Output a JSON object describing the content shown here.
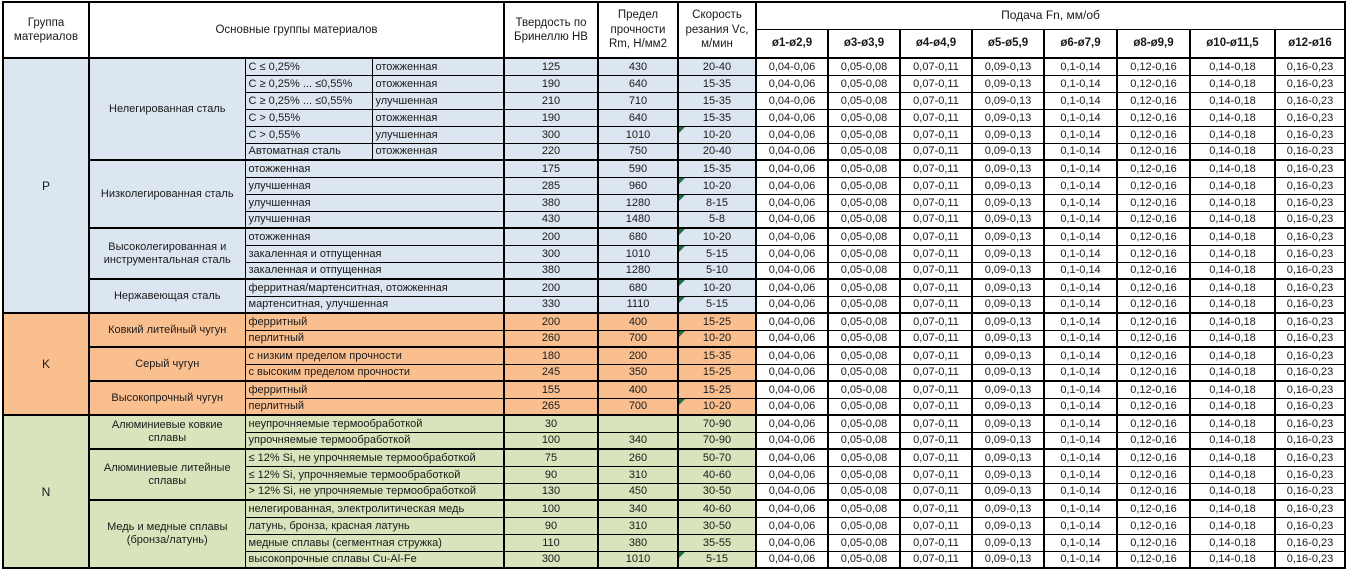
{
  "header": {
    "col_group": "Группа материалов",
    "col_main_groups": "Основные группы материалов",
    "col_hardness": "Твердость по Бринеллю HB",
    "col_strength": "Предел прочности Rm, Н/мм2",
    "col_speed": "Скорость резания Vc, м/мин",
    "feed_title": "Подача Fn, мм/об",
    "feed_cols": [
      "ø1-ø2,9",
      "ø3-ø3,9",
      "ø4-ø4,9",
      "ø5-ø5,9",
      "ø6-ø7,9",
      "ø8-ø9,9",
      "ø10-ø11,5",
      "ø12-ø16"
    ]
  },
  "feed_values": [
    "0,04-0,06",
    "0,05-0,08",
    "0,07-0,11",
    "0,09-0,13",
    "0,1-0,14",
    "0,12-0,16",
    "0,14-0,18",
    "0,16-0,23"
  ],
  "colors": {
    "steel": "#dce6f1",
    "cast_iron": "#fabf8f",
    "nonferrous": "#d8e4bc",
    "flag": "#1e7145",
    "border": "#000000"
  },
  "sections": [
    {
      "group": "P",
      "color": "#dce6f1",
      "subgroups": [
        {
          "name": "Нелегированная сталь",
          "rows": [
            {
              "cond": "C ≤ 0,25%",
              "state": "отожженная",
              "hb": "125",
              "rm": "430",
              "vc": "20-40",
              "flag": false
            },
            {
              "cond": "C ≥ 0,25% ... ≤0,55%",
              "state": "отожженная",
              "hb": "190",
              "rm": "640",
              "vc": "15-35",
              "flag": false
            },
            {
              "cond": "C ≥ 0,25% ... ≤0,55%",
              "state": "улучшенная",
              "hb": "210",
              "rm": "710",
              "vc": "15-35",
              "flag": false
            },
            {
              "cond": "C > 0,55%",
              "state": "отожженная",
              "hb": "190",
              "rm": "640",
              "vc": "15-35",
              "flag": false
            },
            {
              "cond": "C > 0,55%",
              "state": "улучшенная",
              "hb": "300",
              "rm": "1010",
              "vc": "10-20",
              "flag": true
            },
            {
              "cond": "Автоматная сталь",
              "state": "отожженная",
              "hb": "220",
              "rm": "750",
              "vc": "20-40",
              "flag": false
            }
          ]
        },
        {
          "name": "Низколегированная сталь",
          "rows": [
            {
              "desc": "отожженная",
              "hb": "175",
              "rm": "590",
              "vc": "15-35",
              "flag": false
            },
            {
              "desc": "улучшенная",
              "hb": "285",
              "rm": "960",
              "vc": "10-20",
              "flag": true
            },
            {
              "desc": "улучшенная",
              "hb": "380",
              "rm": "1280",
              "vc": "8-15",
              "flag": true
            },
            {
              "desc": "улучшенная",
              "hb": "430",
              "rm": "1480",
              "vc": "5-8",
              "flag": false
            }
          ]
        },
        {
          "name": "Высоколегированная и инструментальная сталь",
          "rows": [
            {
              "desc": "отожженная",
              "hb": "200",
              "rm": "680",
              "vc": "10-20",
              "flag": true
            },
            {
              "desc": "закаленная и отпущенная",
              "hb": "300",
              "rm": "1010",
              "vc": "5-15",
              "flag": true
            },
            {
              "desc": "закаленная и отпущенная",
              "hb": "380",
              "rm": "1280",
              "vc": "5-10",
              "flag": false
            }
          ]
        },
        {
          "name": "Нержавеющая сталь",
          "rows": [
            {
              "desc": "ферритная/мартенситная, отожженная",
              "hb": "200",
              "rm": "680",
              "vc": "10-20",
              "flag": true
            },
            {
              "desc": "мартенситная, улучшенная",
              "hb": "330",
              "rm": "1110",
              "vc": "5-15",
              "flag": true
            }
          ]
        }
      ]
    },
    {
      "group": "K",
      "color": "#fabf8f",
      "subgroups": [
        {
          "name": "Ковкий литейный чугун",
          "rows": [
            {
              "desc": "ферритный",
              "hb": "200",
              "rm": "400",
              "vc": "15-25",
              "flag": false
            },
            {
              "desc": "перлитный",
              "hb": "260",
              "rm": "700",
              "vc": "10-20",
              "flag": true
            }
          ]
        },
        {
          "name": "Серый чугун",
          "rows": [
            {
              "desc": "с низким пределом прочности",
              "hb": "180",
              "rm": "200",
              "vc": "15-35",
              "flag": false
            },
            {
              "desc": "с высоким пределом прочности",
              "hb": "245",
              "rm": "350",
              "vc": "15-25",
              "flag": false
            }
          ]
        },
        {
          "name": "Высокопрочный чугун",
          "rows": [
            {
              "desc": "ферритный",
              "hb": "155",
              "rm": "400",
              "vc": "15-25",
              "flag": false
            },
            {
              "desc": "перлитный",
              "hb": "265",
              "rm": "700",
              "vc": "10-20",
              "flag": true
            }
          ]
        }
      ]
    },
    {
      "group": "N",
      "color": "#d8e4bc",
      "subgroups": [
        {
          "name": "Алюминиевые ковкие сплавы",
          "rows": [
            {
              "desc": "неупрочняемые термообработкой",
              "hb": "30",
              "rm": "",
              "vc": "70-90",
              "flag": false
            },
            {
              "desc": "упрочняемые термообработкой",
              "hb": "100",
              "rm": "340",
              "vc": "70-90",
              "flag": false
            }
          ]
        },
        {
          "name": "Алюминиевые литейные сплавы",
          "rows": [
            {
              "desc": "≤ 12% Si, не упрочняемые термообработкой",
              "hb": "75",
              "rm": "260",
              "vc": "50-70",
              "flag": false
            },
            {
              "desc": "≤ 12% Si, упрочняемые термообработкой",
              "hb": "90",
              "rm": "310",
              "vc": "40-60",
              "flag": false
            },
            {
              "desc": "> 12% Si, не упрочняемые термообработкой",
              "hb": "130",
              "rm": "450",
              "vc": "30-50",
              "flag": false
            }
          ]
        },
        {
          "name": "Медь и медные сплавы (бронза/латунь)",
          "rows": [
            {
              "desc": "нелегированная, электролитическая медь",
              "hb": "100",
              "rm": "340",
              "vc": "40-60",
              "flag": false
            },
            {
              "desc": "латунь, бронза, красная латунь",
              "hb": "90",
              "rm": "310",
              "vc": "30-50",
              "flag": false
            },
            {
              "desc": "медные сплавы (сегментная стружка)",
              "hb": "110",
              "rm": "380",
              "vc": "35-55",
              "flag": false
            },
            {
              "desc": "высокопрочные сплавы Cu-Al-Fe",
              "hb": "300",
              "rm": "1010",
              "vc": "5-15",
              "flag": true
            }
          ]
        }
      ]
    }
  ]
}
